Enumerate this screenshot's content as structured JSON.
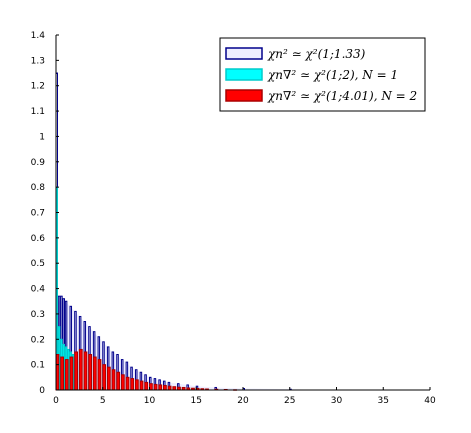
{
  "chart_data": {
    "type": "bar",
    "xlim": [
      0,
      40
    ],
    "ylim": [
      0,
      1.4
    ],
    "x_ticks": [
      "0",
      "5",
      "10",
      "15",
      "20",
      "25",
      "30",
      "35",
      "40"
    ],
    "y_ticks": [
      "0",
      "0.1",
      "0.2",
      "0.3",
      "0.4",
      "0.5",
      "0.6",
      "0.7",
      "0.8",
      "0.9",
      "1",
      "1.1",
      "1.2",
      "1.3",
      "1.4"
    ],
    "grid": false,
    "legend_position": "top-right",
    "series": [
      {
        "name": "χn² ≃ χ²(1;1.33)",
        "fill": "#eeeeff",
        "edge": "#00008b",
        "x": [
          0.0,
          0.25,
          0.5,
          0.75,
          1.0,
          1.5,
          2.0,
          2.5,
          3.0,
          3.5,
          4.0,
          4.5,
          5.0,
          5.5,
          6.0,
          6.5,
          7.0,
          7.5,
          8.0,
          8.5,
          9.0,
          9.5,
          10.0,
          10.5,
          11.0,
          11.5,
          12.0,
          13.0,
          14.0,
          15.0,
          17.0,
          20.0,
          25.0,
          29.5
        ],
        "values": [
          1.25,
          0.37,
          0.37,
          0.36,
          0.35,
          0.33,
          0.31,
          0.29,
          0.27,
          0.25,
          0.23,
          0.21,
          0.19,
          0.17,
          0.15,
          0.14,
          0.12,
          0.11,
          0.09,
          0.08,
          0.07,
          0.06,
          0.05,
          0.045,
          0.04,
          0.035,
          0.03,
          0.025,
          0.02,
          0.015,
          0.01,
          0.006,
          0.003,
          0.0
        ]
      },
      {
        "name": "χn∇² ≃ χ²(1;2), N = 1",
        "fill": "#00ffff",
        "edge": "#00cccc",
        "x": [
          0.0,
          0.25,
          0.5,
          0.75,
          1.0,
          1.25,
          1.5,
          1.75,
          2.0,
          2.5,
          3.0,
          3.5,
          4.0,
          4.5,
          5.0
        ],
        "values": [
          0.8,
          0.25,
          0.2,
          0.18,
          0.17,
          0.16,
          0.15,
          0.14,
          0.13,
          0.11,
          0.09,
          0.07,
          0.05,
          0.03,
          0.02
        ]
      },
      {
        "name": "χn∇² ≃ χ²(1;4.01), N = 2",
        "fill": "#ff0000",
        "edge": "#aa0000",
        "x": [
          0.0,
          0.5,
          1.0,
          1.5,
          2.0,
          2.5,
          3.0,
          3.5,
          4.0,
          4.5,
          5.0,
          5.5,
          6.0,
          6.5,
          7.0,
          7.5,
          8.0,
          8.5,
          9.0,
          9.5,
          10.0,
          10.5,
          11.0,
          11.5,
          12.0,
          12.5,
          13.0,
          13.5,
          14.0,
          14.5,
          15.0,
          15.5,
          16.0,
          17.0,
          18.0,
          19.0
        ],
        "values": [
          0.14,
          0.13,
          0.12,
          0.13,
          0.15,
          0.16,
          0.15,
          0.14,
          0.13,
          0.12,
          0.1,
          0.09,
          0.08,
          0.07,
          0.06,
          0.05,
          0.045,
          0.04,
          0.035,
          0.03,
          0.025,
          0.022,
          0.02,
          0.018,
          0.015,
          0.013,
          0.011,
          0.01,
          0.008,
          0.007,
          0.006,
          0.005,
          0.004,
          0.003,
          0.002,
          0.001
        ]
      }
    ],
    "legend": [
      {
        "label": "χn² ≃ χ²(1;1.33)",
        "fill": "#eeeeff",
        "edge": "#00008b"
      },
      {
        "label": "χn∇² ≃ χ²(1;2), N = 1",
        "fill": "#00ffff",
        "edge": "#00cccc"
      },
      {
        "label": "χn∇² ≃ χ²(1;4.01), N = 2",
        "fill": "#ff0000",
        "edge": "#aa0000"
      }
    ]
  }
}
